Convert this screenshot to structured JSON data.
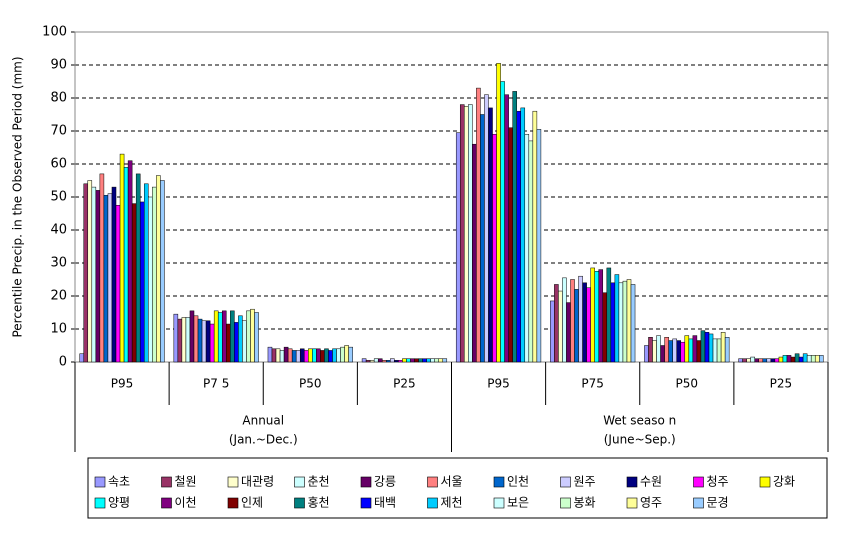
{
  "chart_data": {
    "type": "bar",
    "y_label": "Percentile Precip. in the Observed Period (mm)",
    "categories": [
      "P95",
      "P7 5",
      "P50",
      "P25",
      "P95",
      "P75",
      "P50",
      "P25"
    ],
    "groups": [
      {
        "label": "Annual",
        "sublabel": "(Jan.~Dec.)"
      },
      {
        "label": "Wet seaso n",
        "sublabel": "(June~Sep.)"
      }
    ],
    "ylim": [
      0,
      100
    ],
    "yticks": [
      0,
      10,
      20,
      30,
      40,
      50,
      60,
      70,
      80,
      90,
      100
    ],
    "grid": true,
    "series": [
      {
        "name": "속초",
        "color": "#9999ff",
        "values": [
          2.5,
          14.5,
          4.5,
          1,
          69.5,
          18.5,
          5,
          1
        ]
      },
      {
        "name": "철원",
        "color": "#993366",
        "values": [
          54,
          13,
          4,
          0.5,
          78,
          23.5,
          7.5,
          1
        ]
      },
      {
        "name": "대관령",
        "color": "#ffffcc",
        "values": [
          55,
          13.5,
          4,
          0.5,
          77.5,
          21.5,
          6.5,
          1
        ]
      },
      {
        "name": "춘천",
        "color": "#ccffff",
        "values": [
          53,
          13.5,
          3.5,
          1,
          78,
          25.5,
          8,
          1.5
        ]
      },
      {
        "name": "강릉",
        "color": "#660066",
        "values": [
          52,
          15.5,
          4.5,
          1,
          66,
          18,
          5,
          1
        ]
      },
      {
        "name": "서울",
        "color": "#ff8080",
        "values": [
          57,
          14,
          4,
          0.5,
          83,
          25,
          7.5,
          1
        ]
      },
      {
        "name": "인천",
        "color": "#0066cc",
        "values": [
          50.5,
          13,
          3.5,
          0.5,
          75,
          22,
          6.5,
          1
        ]
      },
      {
        "name": "원주",
        "color": "#ccccff",
        "values": [
          51,
          12.5,
          3.5,
          1,
          81,
          26,
          7,
          1
        ]
      },
      {
        "name": "수원",
        "color": "#000080",
        "values": [
          53,
          12.5,
          4,
          0.5,
          77,
          24,
          6.5,
          1
        ]
      },
      {
        "name": "청주",
        "color": "#ff00ff",
        "values": [
          47.5,
          11.5,
          3.5,
          0.5,
          69,
          22.5,
          6,
          1
        ]
      },
      {
        "name": "강화",
        "color": "#ffff00",
        "values": [
          63,
          15.5,
          4,
          1,
          90.5,
          28.5,
          8,
          1.5
        ]
      },
      {
        "name": "양평",
        "color": "#00ffff",
        "values": [
          59,
          15,
          4,
          1,
          85,
          27.5,
          7,
          2
        ]
      },
      {
        "name": "이천",
        "color": "#800080",
        "values": [
          61,
          15.5,
          4,
          1,
          81,
          28,
          8,
          2
        ]
      },
      {
        "name": "인제",
        "color": "#800000",
        "values": [
          48,
          11.5,
          3.5,
          1,
          71,
          21,
          6.5,
          1.5
        ]
      },
      {
        "name": "홍천",
        "color": "#008080",
        "values": [
          57,
          15.5,
          4,
          1,
          82,
          28.5,
          9.5,
          2.5
        ]
      },
      {
        "name": "태백",
        "color": "#0000ff",
        "values": [
          48.5,
          12,
          3.5,
          1,
          76,
          24,
          9,
          1.5
        ]
      },
      {
        "name": "제천",
        "color": "#00ccff",
        "values": [
          54,
          14,
          4,
          1,
          77,
          26.5,
          8.5,
          2.5
        ]
      },
      {
        "name": "보은",
        "color": "#ccffff",
        "values": [
          50,
          12.5,
          4,
          1,
          69,
          24,
          7,
          2
        ]
      },
      {
        "name": "봉화",
        "color": "#ccffcc",
        "values": [
          53,
          15.5,
          4.5,
          1,
          67,
          24.5,
          7,
          2
        ]
      },
      {
        "name": "영주",
        "color": "#ffff99",
        "values": [
          56.5,
          16,
          5,
          1,
          76,
          25,
          9,
          2
        ]
      },
      {
        "name": "문경",
        "color": "#99ccff",
        "values": [
          55,
          15,
          4.5,
          1,
          70.5,
          23.5,
          7.5,
          2
        ]
      }
    ]
  }
}
